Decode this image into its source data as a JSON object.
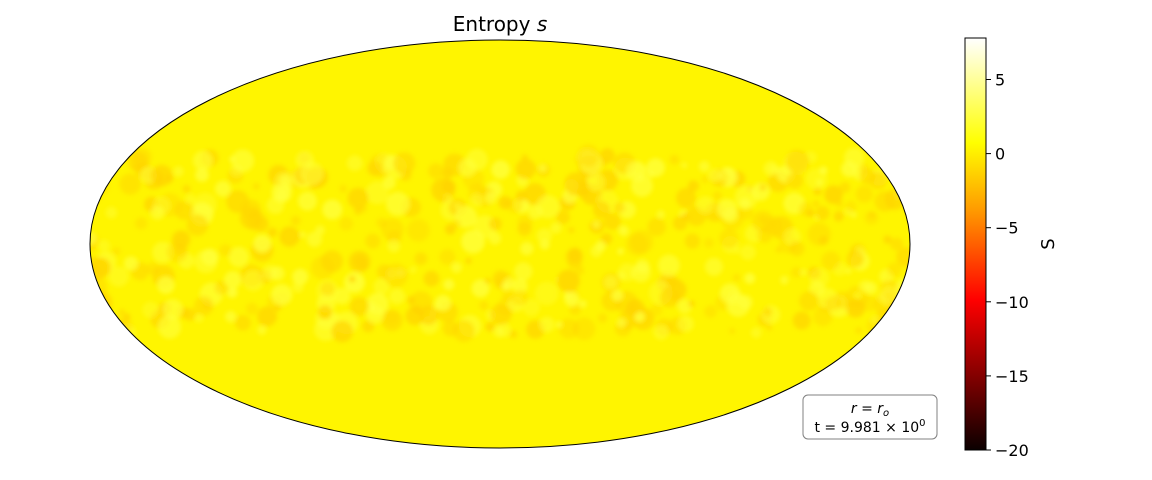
{
  "chart_data": {
    "type": "heatmap",
    "projection": "mollweide",
    "title_main": "Entropy ",
    "title_symbol": "s",
    "field_level": 1.6,
    "field_colors": {
      "base": "#fff500",
      "dark": "#ffd400",
      "light": "#ffff3c"
    },
    "colorbar": {
      "label": "S",
      "vmin": -20,
      "vmax": 7.8,
      "ticks": [
        5,
        0,
        -5,
        -10,
        -15,
        -20
      ],
      "tick_labels": [
        "5",
        "0",
        "−5",
        "−10",
        "−15",
        "−20"
      ],
      "colormap": "hot"
    },
    "annotation": {
      "line1": "r = r",
      "line1_sub": "o",
      "line2": "t = 9.981 × 10",
      "line2_sup": "0"
    }
  }
}
